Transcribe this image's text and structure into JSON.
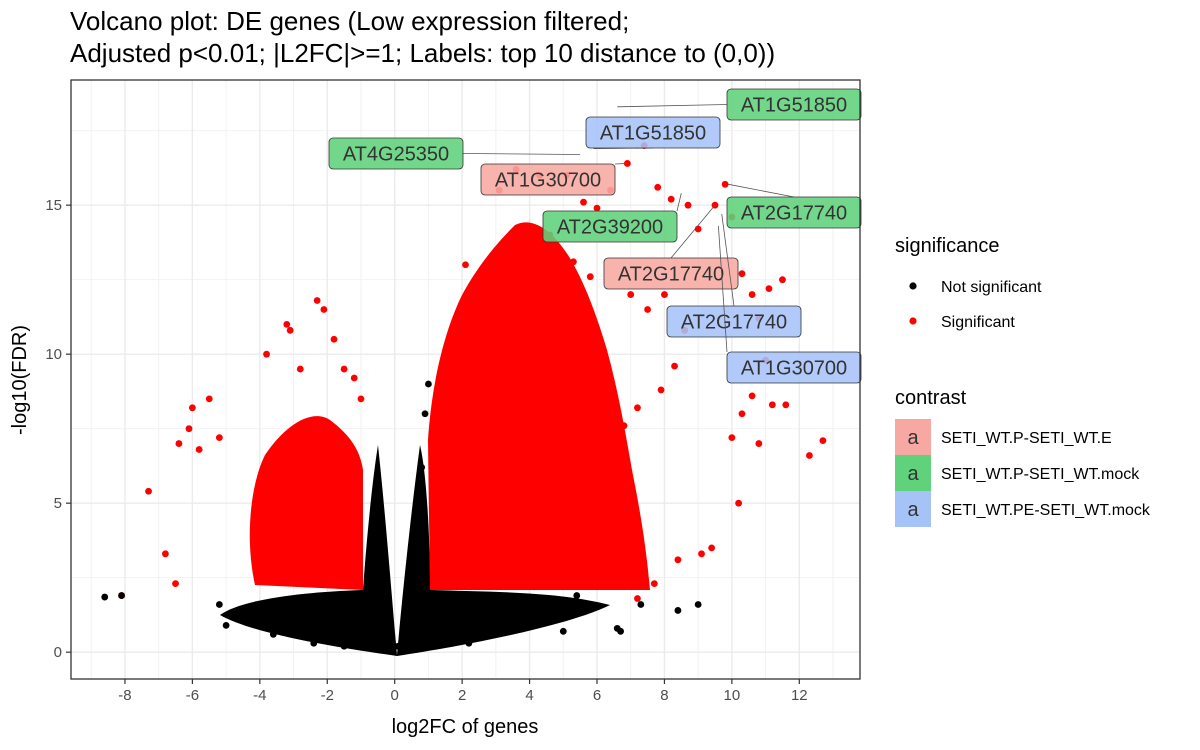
{
  "chart_data": {
    "type": "scatter",
    "title_line1": "Volcano plot: DE genes (Low expression filtered;",
    "title_line2": "Adjusted p<0.01; |L2FC|>=1; Labels: top 10 distance to (0,0))",
    "xlabel": "log2FC of genes",
    "ylabel": "-log10(FDR)",
    "xlim": [
      -9.6,
      13.8
    ],
    "ylim": [
      -0.9,
      19.2
    ],
    "x_ticks": [
      -8,
      -6,
      -4,
      -2,
      0,
      2,
      4,
      6,
      8,
      10,
      12
    ],
    "y_ticks": [
      0,
      5,
      10,
      15
    ],
    "grid": true,
    "legend_position": "right",
    "significance_legend": {
      "title": "significance",
      "entries": [
        {
          "label": "Not significant",
          "color": "#000000"
        },
        {
          "label": "Significant",
          "color": "#ff0000"
        }
      ]
    },
    "contrast_legend": {
      "title": "contrast",
      "key_glyph": "a",
      "entries": [
        {
          "label": "SETI_WT.P-SETI_WT.E",
          "color": "#f8a8a2"
        },
        {
          "label": "SETI_WT.P-SETI_WT.mock",
          "color": "#5fd27b"
        },
        {
          "label": "SETI_WT.PE-SETI_WT.mock",
          "color": "#a6c3f8"
        }
      ]
    },
    "labels": [
      {
        "text": "AT1G51850",
        "contrast": "SETI_WT.P-SETI_WT.mock",
        "x": 6.6,
        "y": 18.3
      },
      {
        "text": "AT1G51850",
        "contrast": "SETI_WT.PE-SETI_WT.mock",
        "x": 5.9,
        "y": 16.9
      },
      {
        "text": "AT4G25350",
        "contrast": "SETI_WT.P-SETI_WT.mock",
        "x": 5.5,
        "y": 16.7
      },
      {
        "text": "AT1G30700",
        "contrast": "SETI_WT.P-SETI_WT.E",
        "x": 6.9,
        "y": 16.4
      },
      {
        "text": "AT2G39200",
        "contrast": "SETI_WT.P-SETI_WT.mock",
        "x": 8.5,
        "y": 15.4
      },
      {
        "text": "AT2G17740",
        "contrast": "SETI_WT.P-SETI_WT.mock",
        "x": 9.9,
        "y": 15.7
      },
      {
        "text": "AT2G17740",
        "contrast": "SETI_WT.P-SETI_WT.E",
        "x": 9.5,
        "y": 15.0
      },
      {
        "text": "AT2G17740",
        "contrast": "SETI_WT.PE-SETI_WT.mock",
        "x": 9.7,
        "y": 14.7
      },
      {
        "text": "AT1G30700",
        "contrast": "SETI_WT.PE-SETI_WT.mock",
        "x": 9.6,
        "y": 14.3
      }
    ],
    "series": [
      {
        "name": "Significant",
        "color": "#ff0000",
        "points": [
          [
            -8.1,
            1.9
          ],
          [
            -7.3,
            5.4
          ],
          [
            -6.8,
            3.3
          ],
          [
            -6.5,
            2.3
          ],
          [
            -6.4,
            7.0
          ],
          [
            -6.1,
            7.5
          ],
          [
            -6.0,
            8.2
          ],
          [
            -5.8,
            6.8
          ],
          [
            -5.5,
            8.5
          ],
          [
            -5.2,
            7.2
          ],
          [
            -3.8,
            10.0
          ],
          [
            -3.2,
            11.0
          ],
          [
            -3.1,
            10.8
          ],
          [
            -2.8,
            9.5
          ],
          [
            -2.3,
            11.8
          ],
          [
            -2.1,
            11.5
          ],
          [
            -1.8,
            10.5
          ],
          [
            -1.5,
            9.5
          ],
          [
            -1.2,
            9.2
          ],
          [
            -1.0,
            8.5
          ],
          [
            5.6,
            15.1
          ],
          [
            6.4,
            15.5
          ],
          [
            6.0,
            14.9
          ],
          [
            6.9,
            16.4
          ],
          [
            7.4,
            17.0
          ],
          [
            7.8,
            15.6
          ],
          [
            8.2,
            15.2
          ],
          [
            8.7,
            15.0
          ],
          [
            9.0,
            14.2
          ],
          [
            9.5,
            15.0
          ],
          [
            9.8,
            15.7
          ],
          [
            10.0,
            14.6
          ],
          [
            10.3,
            12.7
          ],
          [
            10.6,
            12.0
          ],
          [
            10.8,
            11.2
          ],
          [
            11.1,
            12.2
          ],
          [
            11.5,
            12.5
          ],
          [
            11.0,
            9.8
          ],
          [
            10.6,
            8.6
          ],
          [
            10.3,
            8.0
          ],
          [
            10.0,
            7.2
          ],
          [
            10.8,
            7.0
          ],
          [
            11.2,
            8.3
          ],
          [
            11.6,
            8.3
          ],
          [
            12.3,
            6.6
          ],
          [
            12.7,
            7.1
          ],
          [
            10.2,
            5.0
          ],
          [
            9.4,
            3.5
          ],
          [
            9.1,
            3.3
          ],
          [
            8.4,
            3.1
          ],
          [
            7.7,
            2.3
          ],
          [
            7.2,
            1.8
          ],
          [
            6.6,
            3.0
          ],
          [
            6.2,
            2.6
          ],
          [
            3.6,
            16.2
          ],
          [
            3.1,
            15.5
          ],
          [
            4.3,
            16.0
          ],
          [
            5.1,
            16.0
          ],
          [
            2.1,
            13.0
          ],
          [
            2.6,
            12.0
          ],
          [
            3.0,
            11.3
          ],
          [
            4.6,
            14.0
          ],
          [
            5.3,
            13.1
          ],
          [
            5.8,
            12.6
          ],
          [
            7.0,
            12.0
          ],
          [
            7.5,
            11.5
          ],
          [
            8.0,
            12.0
          ],
          [
            8.6,
            10.8
          ],
          [
            8.3,
            9.6
          ],
          [
            7.9,
            8.8
          ],
          [
            7.2,
            8.2
          ],
          [
            6.8,
            7.6
          ]
        ]
      },
      {
        "name": "Not significant",
        "color": "#000000",
        "points": [
          [
            -8.6,
            1.85
          ],
          [
            -8.1,
            1.9
          ],
          [
            -5.2,
            1.6
          ],
          [
            -5.0,
            0.9
          ],
          [
            -4.3,
            1.1
          ],
          [
            -3.6,
            0.6
          ],
          [
            -3.2,
            0.8
          ],
          [
            -2.8,
            1.4
          ],
          [
            -2.4,
            0.3
          ],
          [
            -1.9,
            0.6
          ],
          [
            -1.5,
            0.2
          ],
          [
            -1.0,
            1.2
          ],
          [
            -0.7,
            2.5
          ],
          [
            -0.5,
            4.6
          ],
          [
            -0.3,
            3.2
          ],
          [
            -0.1,
            0.4
          ],
          [
            0.1,
            0.2
          ],
          [
            0.4,
            2.2
          ],
          [
            0.6,
            4.0
          ],
          [
            0.8,
            6.2
          ],
          [
            0.9,
            8.0
          ],
          [
            1.0,
            9.0
          ],
          [
            1.5,
            0.6
          ],
          [
            2.2,
            0.3
          ],
          [
            3.0,
            1.1
          ],
          [
            4.1,
            0.9
          ],
          [
            5.0,
            0.7
          ],
          [
            5.8,
            1.5
          ],
          [
            6.6,
            0.8
          ],
          [
            6.7,
            0.7
          ],
          [
            7.3,
            1.6
          ],
          [
            8.4,
            1.4
          ],
          [
            9.0,
            1.6
          ],
          [
            5.4,
            1.9
          ],
          [
            4.4,
            1.3
          ]
        ]
      }
    ]
  }
}
